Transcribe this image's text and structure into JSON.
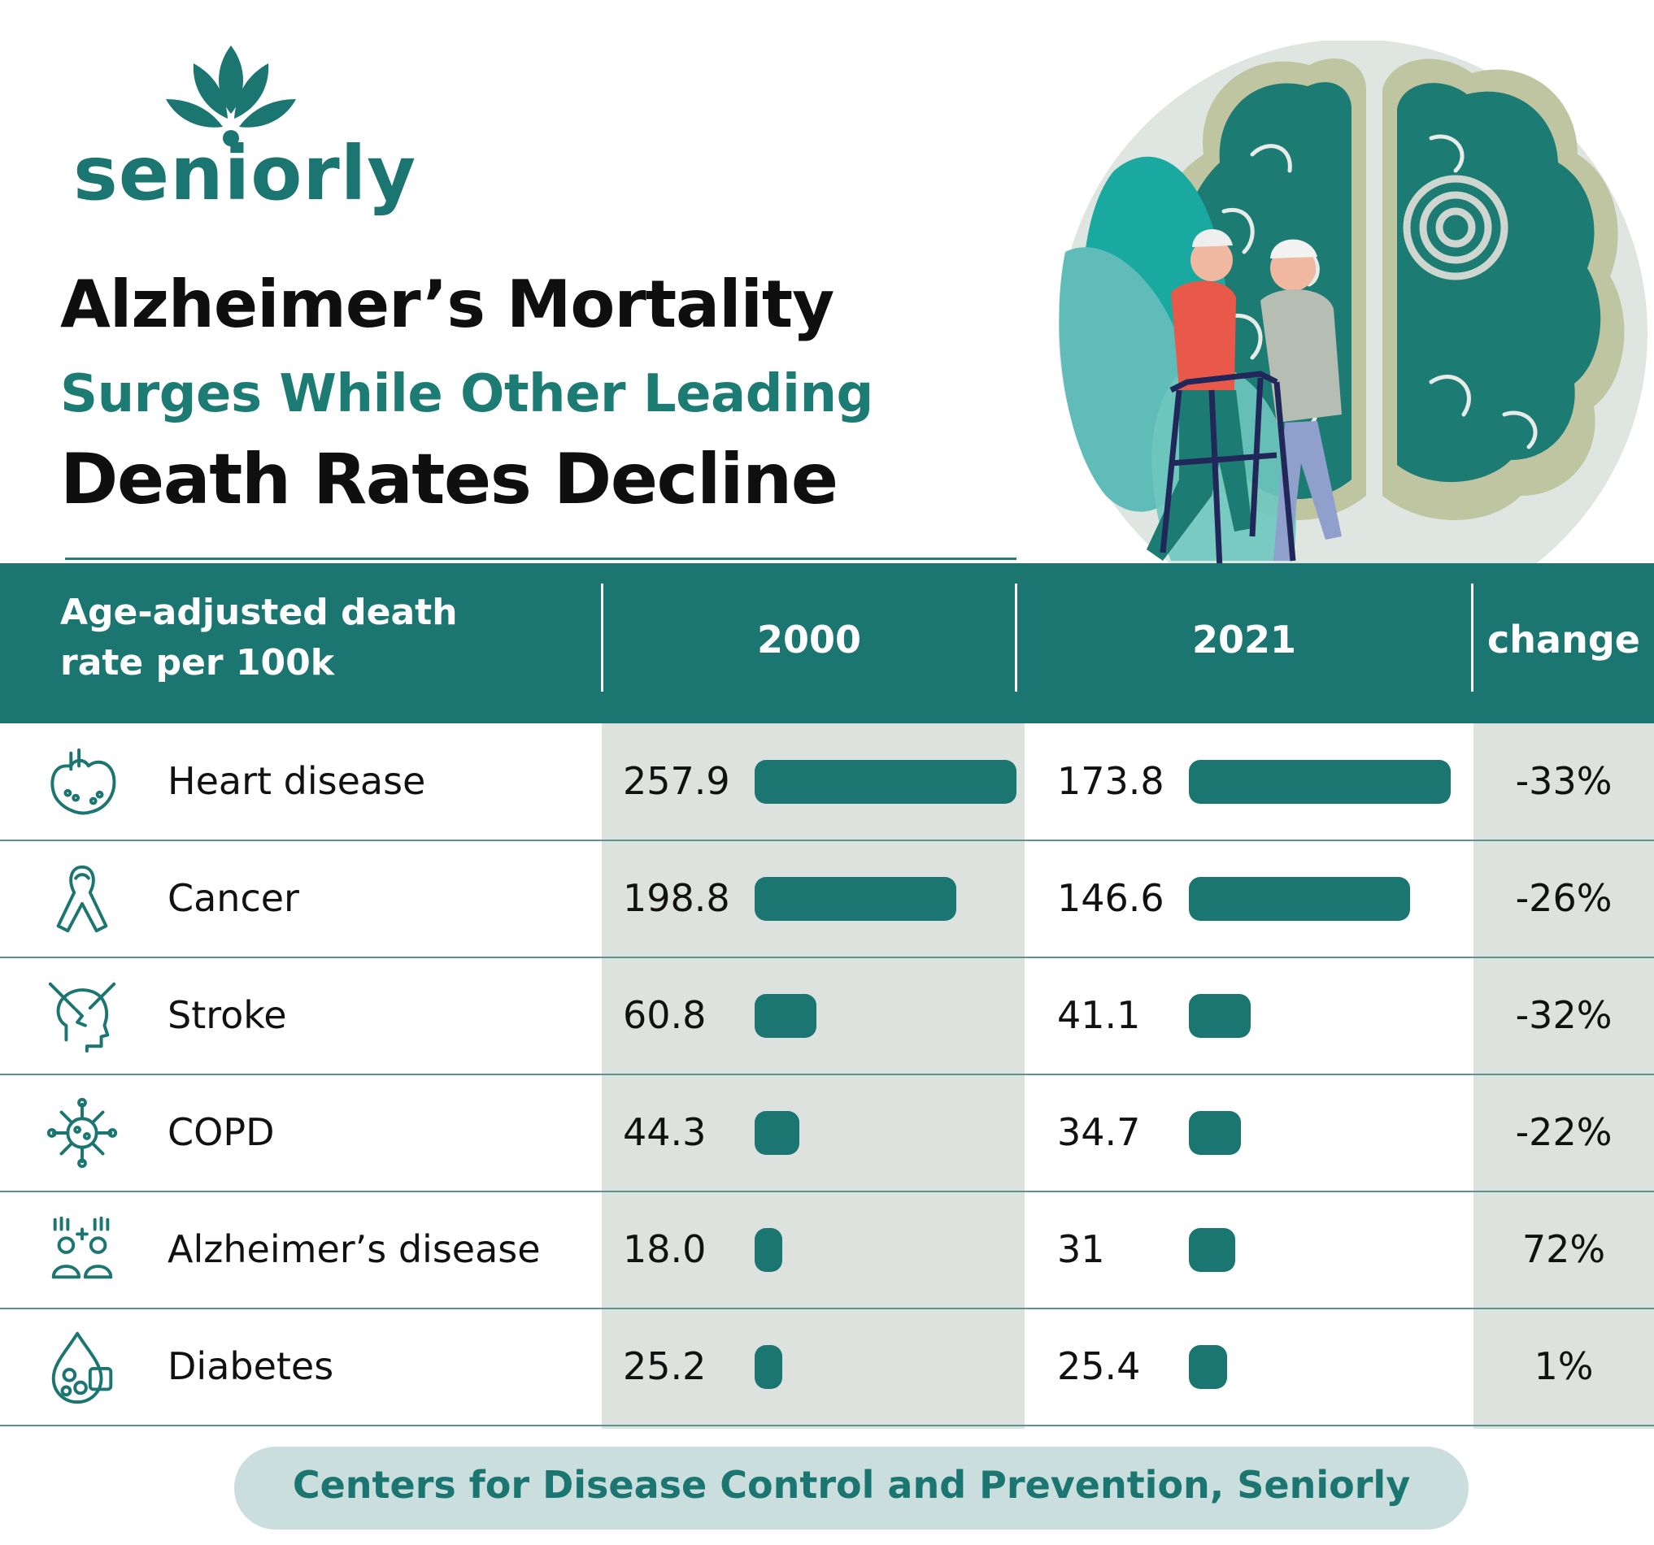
{
  "brand": {
    "name": "seniorly",
    "accent_color": "#1b7570",
    "title_accent_color": "#1c7b73",
    "column_shade_color": "#dde2de"
  },
  "title": {
    "line1": "Alzheimer’s Mortality",
    "line2": "Surges While Other Leading",
    "line3": "Death Rates Decline"
  },
  "table": {
    "header": {
      "label_line1": "Age-adjusted death",
      "label_line2": "rate per 100k",
      "col_2000": "2000",
      "col_2021": "2021",
      "col_change": "change"
    }
  },
  "chart_data": {
    "type": "bar",
    "categories": [
      "Heart disease",
      "Cancer",
      "Stroke",
      "COPD",
      "Alzheimer’s disease",
      "Diabetes"
    ],
    "series": [
      {
        "name": "2000",
        "values": [
          257.9,
          198.8,
          60.8,
          44.3,
          18.0,
          25.2
        ],
        "labels": [
          "257.9",
          "198.8",
          "60.8",
          "44.3",
          "18.0",
          "25.2"
        ]
      },
      {
        "name": "2021",
        "values": [
          173.8,
          146.6,
          41.1,
          34.7,
          31,
          25.4
        ],
        "labels": [
          "173.8",
          "146.6",
          "41.1",
          "34.7",
          "31",
          "25.4"
        ]
      }
    ],
    "change": [
      "-33%",
      "-26%",
      "-32%",
      "-22%",
      "72%",
      "1%"
    ],
    "icons": [
      "heart-icon",
      "ribbon-icon",
      "stroke-head-icon",
      "virus-icon",
      "people-icon",
      "blood-drop-icon"
    ]
  },
  "source": "Centers for Disease Control and Prevention, Seniorly"
}
